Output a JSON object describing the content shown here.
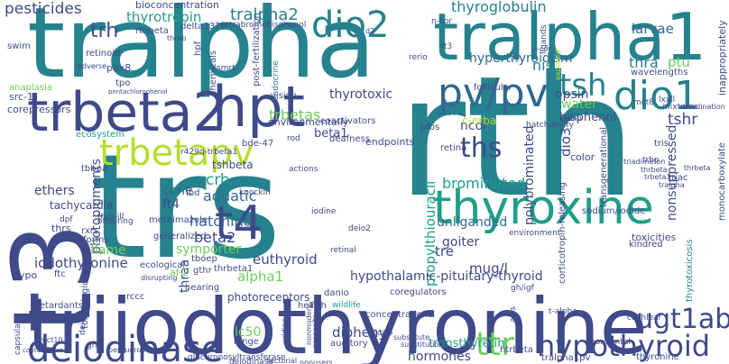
{
  "palette": {
    "purple": "#472f7d",
    "indigo": "#3e4a89",
    "blue": "#31688e",
    "teal": "#26828e",
    "green": "#1f9e89",
    "lightgreen": "#35b779",
    "lime": "#6ece58",
    "yellow": "#b5de2b",
    "bright": "#fde725",
    "dark": "#440154"
  },
  "words": [
    "trs",
    "rth",
    "tralpha",
    "triiodothyronine",
    "t3",
    "tralpha1",
    "trbeta2",
    "hpt",
    "thyroxine",
    "deiodinase",
    "dio2",
    "pv/pv",
    "dio1",
    "trbetapv",
    "t4",
    "hypothyroid",
    "ttr",
    "tsh",
    "ugt1ab",
    "ths",
    "thyroglobulin",
    "thyrotropin",
    "pesticides",
    "bioconcentration",
    "trh",
    "tralpha2",
    "tetrabromobisphenol",
    "delta337t",
    "rthbeta",
    "hyperthyroidism",
    "larvae",
    "thra",
    "ptu",
    "nis",
    "opsin",
    "thyrotoxic",
    "water",
    "bisphenol",
    "tshr",
    "trbetas",
    "crh",
    "beta1",
    "aquatic",
    "cone",
    "ft4",
    "hatching",
    "ethers",
    "photopigments",
    "tshbeta",
    "r429q-trbeta1",
    "ncor",
    "endpoints",
    "polybrominated",
    "nonsuppressed",
    "c-erba",
    "brominated",
    "unliganded",
    "goiter",
    "propylthiouracil",
    "dio3",
    "beta2",
    "tre",
    "mug/l",
    "euthyroid",
    "flame",
    "symporter",
    "iodothyronine",
    "alpha1",
    "hypothalamic-pituitary-thyroid",
    "lc50",
    "diphenyl",
    "transthyretin",
    "hormones",
    "thraa",
    "retardants",
    "toxicological",
    "tachycardia",
    "pax8",
    "retinoid",
    "tpo",
    "hpf",
    "chemicals",
    "smrt",
    "anaplasia",
    "ecosystem",
    "corepressors",
    "tbbpa",
    "coactivators",
    "mixtures",
    "post-fertilization",
    "endocrine",
    "vision",
    "environmentally",
    "bde-47",
    "rod",
    "deafness",
    "pfos",
    "retina",
    "color",
    "tris",
    "triac",
    "sodium/iodide",
    "environment",
    "kindred",
    "toxicities",
    "thyrotoxicosis",
    "gh/igf",
    "helix",
    "concentrations",
    "hinge",
    "auditory",
    "glucuronosyltransferase",
    "tralpha1pv",
    "thyronine",
    "htrbeta",
    "rxr",
    "ecological",
    "generalized",
    "methimazole",
    "tboep",
    "photoreceptors",
    "coregulators",
    "danio",
    "fish",
    "wildlife",
    "rccc",
    "hearing",
    "gthr",
    "thrbeta1",
    "thrs",
    "isoforms",
    "dpf",
    "rxrs",
    "thrb-ill",
    "actions",
    "offspring",
    "hypo",
    "ftc",
    "af-2",
    "lbd",
    "deio2",
    "iodine",
    "knockin",
    "ligands",
    "n-cor",
    "rerio",
    "wavelengths",
    "follicular",
    "exposed",
    "inappropriately",
    "lxxll",
    "mct8",
    "deiodination",
    "e457a",
    "triadimefon",
    "thrbeta",
    "trbeta3",
    "tralpha",
    "monocarboxylate",
    "transgenerational",
    "corticotropin-releasing",
    "ligand",
    "thrab",
    "adverse",
    "swim",
    "pentachlorophenol",
    "src-1",
    "ft3",
    "d2",
    "n-cor",
    "hatchability",
    "t-alpha",
    "cochlear",
    "trbp",
    "thrbeta",
    "capsular",
    "contaminant",
    "mct10",
    "perfluorooctane",
    "tectorial",
    "iodide",
    "substitute",
    "nonusers",
    "deiodinase",
    "nonmoders",
    "uridine",
    "deiol",
    "gh3",
    "axis",
    "horizontal",
    "retinal",
    "disrupting",
    "proposita",
    "substitution",
    "disrupting"
  ]
}
